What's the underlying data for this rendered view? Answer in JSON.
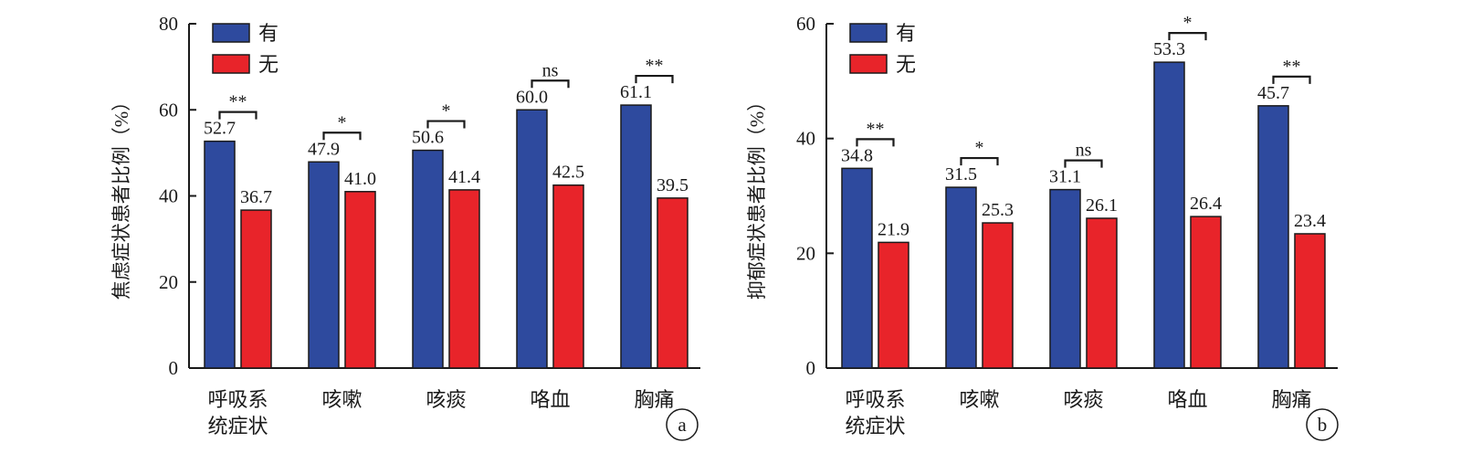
{
  "chart_data": [
    {
      "type": "bar",
      "panel_tag": "a",
      "ylabel": "焦虑症状患者比例（%）",
      "ylim": [
        0,
        80
      ],
      "yticks": [
        0,
        20,
        40,
        60,
        80
      ],
      "categories": [
        [
          "呼吸系",
          "统症状"
        ],
        [
          "咳嗽"
        ],
        [
          "咳痰"
        ],
        [
          "咯血"
        ],
        [
          "胸痛"
        ]
      ],
      "series": [
        {
          "name": "有",
          "color": "#2e4a9e",
          "values": [
            52.7,
            47.9,
            50.6,
            60.0,
            61.1
          ],
          "labels": [
            "52.7",
            "47.9",
            "50.6",
            "60.0",
            "61.1"
          ]
        },
        {
          "name": "无",
          "color": "#e8242a",
          "values": [
            36.7,
            41.0,
            41.4,
            42.5,
            39.5
          ],
          "labels": [
            "36.7",
            "41.0",
            "41.4",
            "42.5",
            "39.5"
          ]
        }
      ],
      "significance": [
        "**",
        "*",
        "*",
        "ns",
        "**"
      ],
      "legend_position": "top-left",
      "grid": false
    },
    {
      "type": "bar",
      "panel_tag": "b",
      "ylabel": "抑郁症状患者比例（%）",
      "ylim": [
        0,
        60
      ],
      "yticks": [
        0,
        20,
        40,
        60
      ],
      "categories": [
        [
          "呼吸系",
          "统症状"
        ],
        [
          "咳嗽"
        ],
        [
          "咳痰"
        ],
        [
          "咯血"
        ],
        [
          "胸痛"
        ]
      ],
      "series": [
        {
          "name": "有",
          "color": "#2e4a9e",
          "values": [
            34.8,
            31.5,
            31.1,
            53.3,
            45.7
          ],
          "labels": [
            "34.8",
            "31.5",
            "31.1",
            "53.3",
            "45.7"
          ]
        },
        {
          "name": "无",
          "color": "#e8242a",
          "values": [
            21.9,
            25.3,
            26.1,
            26.4,
            23.4
          ],
          "labels": [
            "21.9",
            "25.3",
            "26.1",
            "26.4",
            "23.4"
          ]
        }
      ],
      "significance": [
        "**",
        "*",
        "ns",
        "*",
        "**"
      ],
      "legend_position": "top-left",
      "grid": false
    }
  ]
}
